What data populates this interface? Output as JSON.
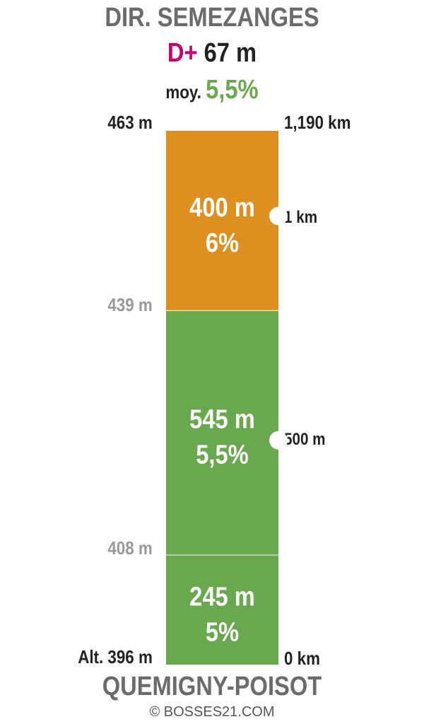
{
  "header": {
    "title": "DIR. SEMEZANGES",
    "dplus_prefix": "D+",
    "dplus_value": "67 m",
    "avg_prefix": "moy.",
    "avg_value": "5,5%"
  },
  "footer": {
    "start_name": "QUEMIGNY-POISOT",
    "credit": "© BOSSES21.COM"
  },
  "colors": {
    "orange": "#dd9020",
    "green": "#6aa84f",
    "accent": "#c4006a"
  },
  "labels": {
    "alt_top": "463 m",
    "alt_mid1": "439 m",
    "alt_mid2": "408 m",
    "alt_start": "Alt. 396 m",
    "km_top": "1,190 km",
    "km_mark1": "1 km",
    "km_mark2": "500 m",
    "km_start": "0 km"
  },
  "chart_data": {
    "type": "bar",
    "segments": [
      {
        "length_m": 245,
        "gradient": "5%",
        "length_label": "245 m",
        "grade_label": "5%",
        "alt_start": 396,
        "alt_end": 408,
        "color": "#6aa84f"
      },
      {
        "length_m": 545,
        "gradient": "5,5%",
        "length_label": "545 m",
        "grade_label": "5,5%",
        "alt_start": 408,
        "alt_end": 439,
        "color": "#6aa84f"
      },
      {
        "length_m": 400,
        "gradient": "6%",
        "length_label": "400 m",
        "grade_label": "6%",
        "alt_start": 439,
        "alt_end": 463,
        "color": "#dd9020"
      }
    ],
    "total_distance_km": 1.19,
    "km_markers": [
      0.5,
      1
    ]
  }
}
